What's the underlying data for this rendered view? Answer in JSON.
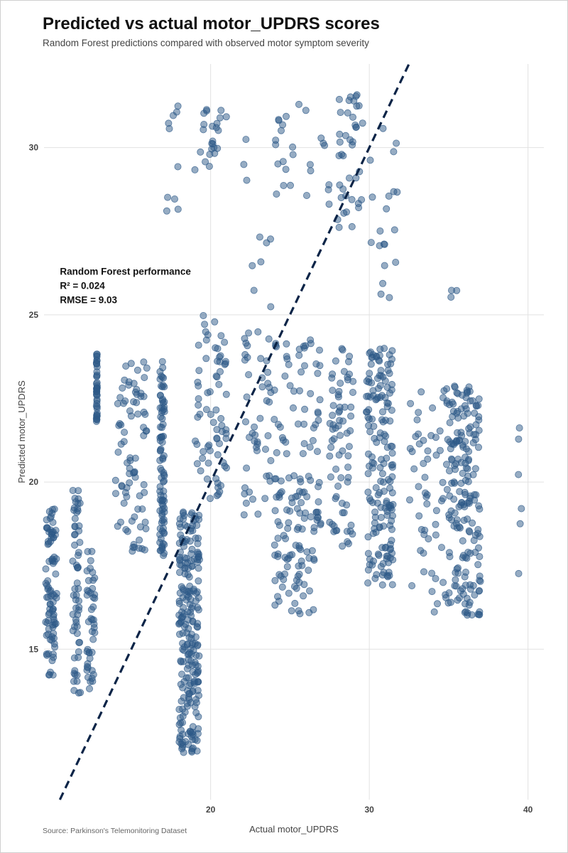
{
  "chart_data": {
    "type": "scatter",
    "title": "Predicted vs actual motor_UPDRS scores",
    "subtitle": "Random Forest predictions compared with observed motor symptom severity",
    "xlabel": "Actual motor_UPDRS",
    "ylabel": "Predicted motor_UPDRS",
    "source": "Source: Parkinson's Telemonitoring Dataset",
    "xlim": [
      9.5,
      41
    ],
    "ylim": [
      10.5,
      32.5
    ],
    "xticks": [
      20,
      30,
      40
    ],
    "yticks": [
      15,
      20,
      25,
      30
    ],
    "grid": true,
    "reference_line": {
      "type": "identity",
      "style": "dashed",
      "color": "#0b2447"
    },
    "point_color": "#2e5a88",
    "annotation": {
      "heading": "Random Forest performance",
      "r2": "R² = 0.024",
      "rmse": "RMSE = 9.03",
      "x": 10.5,
      "y": 26.2
    },
    "clusters": [
      {
        "x": [
          9.6,
          10.3
        ],
        "y": [
          14.2,
          19.2
        ],
        "n": 90
      },
      {
        "x": [
          11.3,
          11.8
        ],
        "y": [
          13.5,
          19.8
        ],
        "n": 60
      },
      {
        "x": [
          12.2,
          12.7
        ],
        "y": [
          13.8,
          18.0
        ],
        "n": 45
      },
      {
        "x": [
          12.8,
          12.85
        ],
        "y": [
          21.8,
          23.9
        ],
        "n": 45
      },
      {
        "x": [
          14.0,
          16.0
        ],
        "y": [
          17.9,
          23.6
        ],
        "n": 80
      },
      {
        "x": [
          16.8,
          17.1
        ],
        "y": [
          17.8,
          23.8
        ],
        "n": 90
      },
      {
        "x": [
          18.0,
          19.3
        ],
        "y": [
          11.9,
          19.3
        ],
        "n": 230
      },
      {
        "x": [
          17.1,
          18.1
        ],
        "y": [
          28.0,
          31.3
        ],
        "n": 10
      },
      {
        "x": [
          19.0,
          21.0
        ],
        "y": [
          19.5,
          25.0
        ],
        "n": 70
      },
      {
        "x": [
          19.0,
          21.0
        ],
        "y": [
          29.3,
          31.3
        ],
        "n": 24
      },
      {
        "x": [
          22.0,
          23.0
        ],
        "y": [
          19.0,
          25.3
        ],
        "n": 28
      },
      {
        "x": [
          22.0,
          24.0
        ],
        "y": [
          25.0,
          31.0
        ],
        "n": 10
      },
      {
        "x": [
          23.0,
          27.0
        ],
        "y": [
          19.5,
          24.3
        ],
        "n": 90
      },
      {
        "x": [
          24.0,
          27.0
        ],
        "y": [
          16.0,
          19.6
        ],
        "n": 80
      },
      {
        "x": [
          24.0,
          27.5
        ],
        "y": [
          28.0,
          31.3
        ],
        "n": 26
      },
      {
        "x": [
          27.5,
          29.0
        ],
        "y": [
          18.0,
          24.0
        ],
        "n": 70
      },
      {
        "x": [
          28.0,
          29.6
        ],
        "y": [
          27.6,
          31.6
        ],
        "n": 40
      },
      {
        "x": [
          29.8,
          31.5
        ],
        "y": [
          16.9,
          24.0
        ],
        "n": 170
      },
      {
        "x": [
          30.0,
          31.9
        ],
        "y": [
          25.0,
          30.7
        ],
        "n": 20
      },
      {
        "x": [
          32.5,
          35.0
        ],
        "y": [
          16.0,
          23.0
        ],
        "n": 60
      },
      {
        "x": [
          35.0,
          37.0
        ],
        "y": [
          16.0,
          22.9
        ],
        "n": 180
      },
      {
        "x": [
          35.1,
          36.0
        ],
        "y": [
          24.6,
          25.8
        ],
        "n": 3
      },
      {
        "x": [
          39.4,
          39.6
        ],
        "y": [
          16.6,
          22.1
        ],
        "n": 6
      }
    ]
  }
}
